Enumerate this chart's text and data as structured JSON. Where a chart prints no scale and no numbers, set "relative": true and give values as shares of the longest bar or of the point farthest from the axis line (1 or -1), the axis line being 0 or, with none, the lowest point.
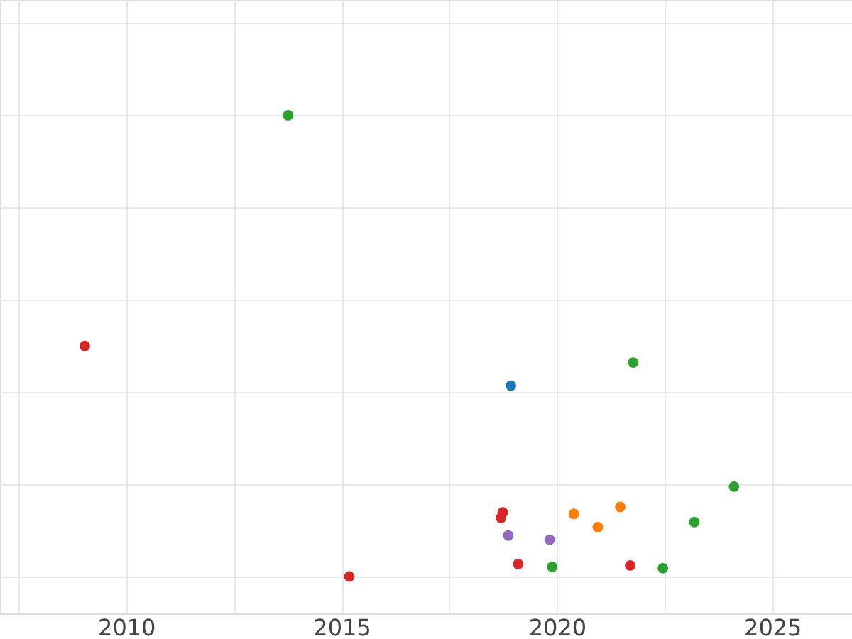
{
  "chart_data": {
    "type": "scatter",
    "relative": true,
    "grid": true,
    "xlim": [
      2007.07,
      2026.85
    ],
    "xticks": [
      {
        "value": 2007.5,
        "label": null
      },
      2010,
      {
        "value": 2012.5,
        "label": null
      },
      2015,
      {
        "value": 2017.5,
        "label": null
      },
      2020,
      {
        "value": 2022.5,
        "label": null
      },
      2025
    ],
    "series": [
      {
        "color": "#2ca02c",
        "x": [
          2013.76,
          2021.77,
          2024.11,
          2023.19,
          2019.89,
          2022.46
        ],
        "values": [
          1,
          0.464,
          0.195,
          0.118,
          0.021,
          0.018
        ]
      },
      {
        "color": "#d62728",
        "x": [
          2009.04,
          2015.18,
          2018.74,
          2018.7,
          2019.1,
          2021.7
        ],
        "values": [
          0.5,
          0,
          0.139,
          0.127,
          0.027,
          0.024
        ]
      },
      {
        "color": "#1f77b4",
        "x": [
          2018.93
        ],
        "values": [
          0.414
        ]
      },
      {
        "color": "#ff7f0e",
        "x": [
          2020.39,
          2020.95,
          2021.47
        ],
        "values": [
          0.136,
          0.107,
          0.151
        ]
      },
      {
        "color": "#9467bd",
        "x": [
          2018.87,
          2019.83
        ],
        "values": [
          0.089,
          0.08
        ]
      }
    ]
  }
}
